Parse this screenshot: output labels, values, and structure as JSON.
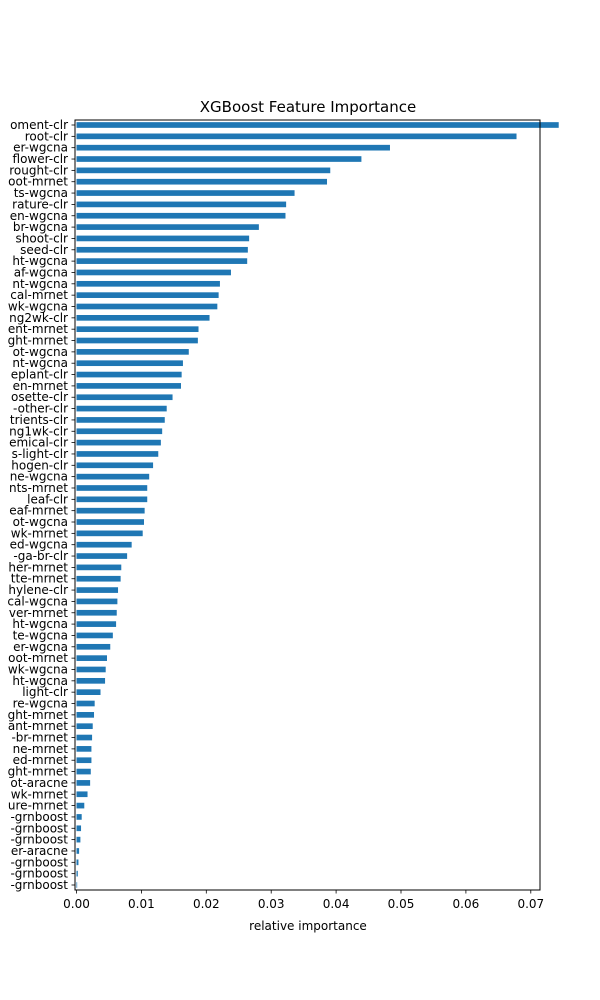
{
  "chart_data": {
    "type": "bar",
    "orientation": "horizontal",
    "title": "XGBoost Feature Importance",
    "xlabel": "relative importance",
    "ylabel": "",
    "xlim": [
      0.0,
      0.078
    ],
    "xticks": [
      "0.00",
      "0.01",
      "0.02",
      "0.03",
      "0.04",
      "0.05",
      "0.06",
      "0.07"
    ],
    "xtick_values": [
      0,
      0.01,
      0.02,
      0.03,
      0.04,
      0.05,
      0.06,
      0.07
    ],
    "grid": false,
    "legend": "none",
    "bar_color": "#1f77b4",
    "categories": [
      "oment-clr",
      "root-clr",
      "er-wgcna",
      "flower-clr",
      "rought-clr",
      "oot-mrnet",
      "ts-wgcna",
      "rature-clr",
      "en-wgcna",
      "br-wgcna",
      "shoot-clr",
      "seed-clr",
      "ht-wgcna",
      "af-wgcna",
      "nt-wgcna",
      "cal-mrnet",
      "wk-wgcna",
      "ng2wk-clr",
      "ent-mrnet",
      "ght-mrnet",
      "ot-wgcna",
      "nt-wgcna",
      "eplant-clr",
      "en-mrnet",
      "osette-clr",
      "-other-clr",
      "trients-clr",
      "ng1wk-clr",
      "emical-clr",
      "s-light-clr",
      "hogen-clr",
      "ne-wgcna",
      "nts-mrnet",
      "leaf-clr",
      "eaf-mrnet",
      "ot-wgcna",
      "wk-mrnet",
      "ed-wgcna",
      "-ga-br-clr",
      "her-mrnet",
      "tte-mrnet",
      "hylene-clr",
      "cal-wgcna",
      "ver-mrnet",
      "ht-wgcna",
      "te-wgcna",
      "er-wgcna",
      "oot-mrnet",
      "wk-wgcna",
      "ht-wgcna",
      "light-clr",
      "re-wgcna",
      "ght-mrnet",
      "ant-mrnet",
      "-br-mrnet",
      "ne-mrnet",
      "ed-mrnet",
      "ght-mrnet",
      "ot-aracne",
      "wk-mrnet",
      "ure-mrnet",
      "-grnboost",
      "-grnboost",
      "-grnboost",
      "er-aracne",
      "-grnboost",
      "-grnboost",
      "-grnboost"
    ],
    "values": [
      0.0743,
      0.0678,
      0.0483,
      0.0439,
      0.0391,
      0.0386,
      0.0336,
      0.0323,
      0.0322,
      0.0281,
      0.0266,
      0.0264,
      0.0263,
      0.0238,
      0.0221,
      0.0219,
      0.0217,
      0.0205,
      0.0188,
      0.0187,
      0.0173,
      0.0164,
      0.0162,
      0.0161,
      0.0148,
      0.0139,
      0.0136,
      0.0132,
      0.013,
      0.0126,
      0.0118,
      0.0112,
      0.0109,
      0.0109,
      0.0105,
      0.0104,
      0.0102,
      0.0085,
      0.0078,
      0.0069,
      0.0068,
      0.0064,
      0.0063,
      0.0062,
      0.0061,
      0.0056,
      0.0052,
      0.0047,
      0.0045,
      0.0044,
      0.0037,
      0.0028,
      0.0027,
      0.0025,
      0.0024,
      0.0023,
      0.0023,
      0.0022,
      0.0021,
      0.0017,
      0.0012,
      0.0008,
      0.0007,
      0.0006,
      0.0004,
      0.0003,
      0.0002,
      0.0001
    ]
  }
}
